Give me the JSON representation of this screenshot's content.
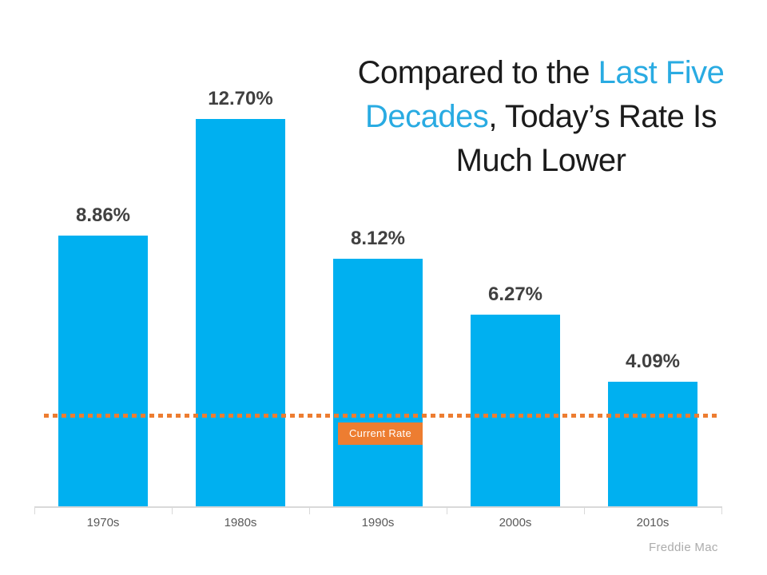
{
  "slide": {
    "title": {
      "lines": [
        {
          "segments": [
            {
              "text": "Compared to the ",
              "accent": false
            },
            {
              "text": "Last Five",
              "accent": true
            }
          ]
        },
        {
          "segments": [
            {
              "text": "Decades",
              "accent": true
            },
            {
              "text": ", Today’s Rate Is",
              "accent": false
            }
          ]
        },
        {
          "segments": [
            {
              "text": "Much Lower",
              "accent": false
            }
          ]
        }
      ]
    },
    "source": "Freddie Mac"
  },
  "colors": {
    "bar": "#00B0F0",
    "title_accent": "#29ABE2",
    "current_rate_orange": "#ED7D31",
    "value_label": "#404040",
    "axis_line": "#D9D9D9",
    "axis_label": "#595959",
    "source_text": "#ACACAC"
  },
  "chart_data": {
    "type": "bar",
    "title": "Compared to the Last Five Decades, Today’s Rate Is Much Lower",
    "categories": [
      "1970s",
      "1980s",
      "1990s",
      "2000s",
      "2010s"
    ],
    "values": [
      8.86,
      12.7,
      8.12,
      6.27,
      4.09
    ],
    "value_labels": [
      "8.86%",
      "12.70%",
      "8.12%",
      "6.27%",
      "4.09%"
    ],
    "xlabel": "",
    "ylabel": "",
    "ylim": [
      0,
      14.5
    ],
    "grid": false,
    "legend": false,
    "annotation": {
      "label": "Current Rate",
      "value": 3.03,
      "style": "orange-dotted-horizontal-line"
    },
    "source": "Freddie Mac"
  }
}
